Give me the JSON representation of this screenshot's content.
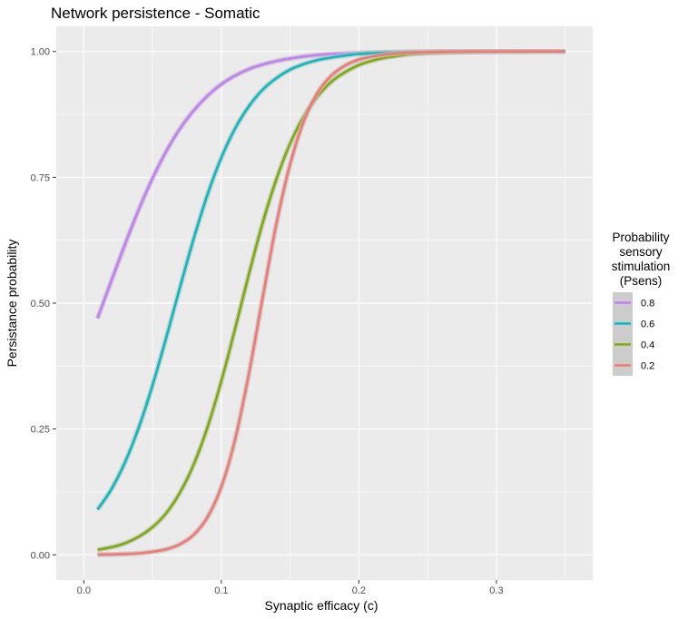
{
  "chart_data": {
    "type": "line",
    "title": "Network persistence - Somatic",
    "xlabel": "Synaptic efficacy (c)",
    "ylabel": "Persistance probability",
    "xlim": [
      -0.02,
      0.37
    ],
    "ylim": [
      -0.05,
      1.05
    ],
    "x_ticks": [
      0.0,
      0.1,
      0.2,
      0.3
    ],
    "x_tick_labels": [
      "0.0",
      "0.1",
      "0.2",
      "0.3"
    ],
    "y_ticks": [
      0.0,
      0.25,
      0.5,
      0.75,
      1.0
    ],
    "y_tick_labels": [
      "0.00",
      "0.25",
      "0.50",
      "0.75",
      "1.00"
    ],
    "grid": true,
    "legend": {
      "title_lines": [
        "Probability",
        "sensory",
        "stimulation",
        "(Psens)"
      ],
      "placement": "right"
    },
    "colors": {
      "panel_bg": "#ebebeb",
      "grid": "#ffffff",
      "ribbon": "#bdbdbd",
      "legend_key_bg": "#cccccc"
    },
    "series": [
      {
        "name": "0.8",
        "color": "#c77cff",
        "x": [
          0.01,
          0.02,
          0.03,
          0.04,
          0.05,
          0.06,
          0.07,
          0.08,
          0.09,
          0.1,
          0.11,
          0.12,
          0.13,
          0.14,
          0.15,
          0.16,
          0.17,
          0.18,
          0.19,
          0.2,
          0.21,
          0.22,
          0.23,
          0.24,
          0.25,
          0.26,
          0.27,
          0.28,
          0.29,
          0.3,
          0.31,
          0.32,
          0.33,
          0.34,
          0.35
        ],
        "y": [
          0.47,
          0.544,
          0.617,
          0.686,
          0.748,
          0.802,
          0.847,
          0.883,
          0.912,
          0.935,
          0.952,
          0.965,
          0.974,
          0.981,
          0.986,
          0.99,
          0.993,
          0.995,
          0.996,
          0.997,
          0.998,
          0.9985,
          0.999,
          0.9993,
          0.9995,
          0.9996,
          0.9997,
          0.9998,
          0.9998,
          0.9999,
          0.9999,
          0.9999,
          1.0,
          1.0,
          1.0
        ]
      },
      {
        "name": "0.6",
        "color": "#00bfc4",
        "x": [
          0.01,
          0.02,
          0.03,
          0.04,
          0.05,
          0.06,
          0.07,
          0.08,
          0.09,
          0.1,
          0.11,
          0.12,
          0.13,
          0.14,
          0.15,
          0.16,
          0.17,
          0.18,
          0.19,
          0.2,
          0.21,
          0.22,
          0.23,
          0.24,
          0.25,
          0.26,
          0.27,
          0.28,
          0.29,
          0.3,
          0.31,
          0.32,
          0.33,
          0.34,
          0.35
        ],
        "y": [
          0.09,
          0.13,
          0.184,
          0.253,
          0.337,
          0.432,
          0.532,
          0.629,
          0.716,
          0.789,
          0.847,
          0.891,
          0.924,
          0.947,
          0.964,
          0.975,
          0.983,
          0.988,
          0.992,
          0.995,
          0.9965,
          0.9976,
          0.9984,
          0.9989,
          0.9993,
          0.9995,
          0.9997,
          0.9998,
          0.9998,
          0.9999,
          0.9999,
          1.0,
          1.0,
          1.0,
          1.0
        ]
      },
      {
        "name": "0.4",
        "color": "#7cae00",
        "x": [
          0.01,
          0.02,
          0.03,
          0.04,
          0.05,
          0.06,
          0.07,
          0.08,
          0.09,
          0.1,
          0.11,
          0.12,
          0.13,
          0.14,
          0.15,
          0.16,
          0.17,
          0.18,
          0.19,
          0.2,
          0.21,
          0.22,
          0.23,
          0.24,
          0.25,
          0.26,
          0.27,
          0.28,
          0.29,
          0.3,
          0.31,
          0.32,
          0.33,
          0.34,
          0.35
        ],
        "y": [
          0.01,
          0.015,
          0.023,
          0.036,
          0.055,
          0.083,
          0.124,
          0.18,
          0.254,
          0.345,
          0.449,
          0.557,
          0.659,
          0.746,
          0.817,
          0.871,
          0.911,
          0.94,
          0.959,
          0.973,
          0.982,
          0.988,
          0.992,
          0.995,
          0.9966,
          0.9978,
          0.9986,
          0.9991,
          0.9994,
          0.9996,
          0.9997,
          0.9998,
          0.9999,
          1.0,
          1.0
        ]
      },
      {
        "name": "0.2",
        "color": "#f8766d",
        "x": [
          0.01,
          0.02,
          0.03,
          0.04,
          0.05,
          0.06,
          0.07,
          0.08,
          0.09,
          0.1,
          0.11,
          0.12,
          0.13,
          0.14,
          0.15,
          0.16,
          0.17,
          0.18,
          0.19,
          0.2,
          0.21,
          0.22,
          0.23,
          0.24,
          0.25,
          0.26,
          0.27,
          0.28,
          0.29,
          0.3,
          0.31,
          0.32,
          0.33,
          0.34,
          0.35
        ],
        "y": [
          0.0004,
          0.0008,
          0.0016,
          0.003,
          0.006,
          0.011,
          0.021,
          0.04,
          0.075,
          0.135,
          0.229,
          0.359,
          0.51,
          0.657,
          0.776,
          0.862,
          0.918,
          0.952,
          0.972,
          0.984,
          0.99,
          0.994,
          0.9966,
          0.998,
          0.9989,
          0.9994,
          0.9996,
          0.9998,
          0.9999,
          0.9999,
          1.0,
          1.0,
          1.0,
          1.0,
          1.0
        ]
      }
    ]
  }
}
